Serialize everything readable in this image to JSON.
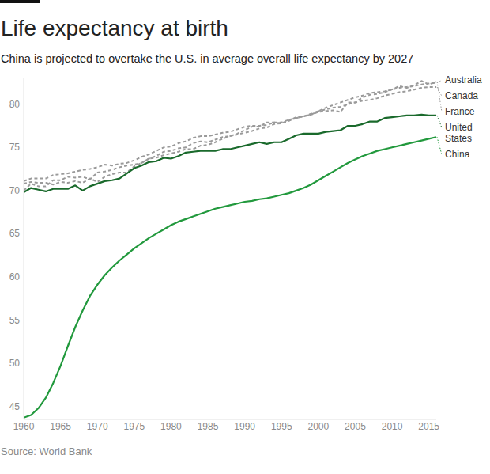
{
  "chart_data": {
    "type": "line",
    "title": "Life expectancy at birth",
    "subtitle": "China is projected to overtake the U.S. in average overall life expectancy by 2027",
    "source": "Source: World Bank",
    "x": [
      1960,
      1961,
      1962,
      1963,
      1964,
      1965,
      1966,
      1967,
      1968,
      1969,
      1970,
      1971,
      1972,
      1973,
      1974,
      1975,
      1976,
      1977,
      1978,
      1979,
      1980,
      1981,
      1982,
      1983,
      1984,
      1985,
      1986,
      1987,
      1988,
      1989,
      1990,
      1991,
      1992,
      1993,
      1994,
      1995,
      1996,
      1997,
      1998,
      1999,
      2000,
      2001,
      2002,
      2003,
      2004,
      2005,
      2006,
      2007,
      2008,
      2009,
      2010,
      2011,
      2012,
      2013,
      2014,
      2015,
      2016
    ],
    "xlim": [
      1960,
      2016
    ],
    "xticks": [
      1960,
      1965,
      1970,
      1975,
      1980,
      1985,
      1990,
      1995,
      2000,
      2005,
      2010,
      2015
    ],
    "ylim": [
      43.5,
      83
    ],
    "yticks": [
      45,
      50,
      55,
      60,
      65,
      70,
      75,
      80
    ],
    "grid": false,
    "series": [
      {
        "name": "Australia",
        "color": "#9a9a9a",
        "line_style": "dashed",
        "values": [
          70.8,
          71.0,
          70.9,
          70.9,
          70.7,
          71.0,
          70.9,
          71.1,
          70.9,
          71.4,
          71.0,
          71.6,
          71.9,
          72.1,
          72.1,
          72.8,
          73.2,
          73.7,
          74.0,
          74.5,
          74.6,
          74.9,
          75.0,
          75.5,
          75.7,
          75.6,
          75.9,
          76.2,
          76.3,
          76.6,
          77.0,
          77.4,
          77.4,
          77.9,
          77.9,
          77.8,
          78.1,
          78.5,
          78.6,
          78.9,
          79.2,
          79.6,
          79.9,
          80.2,
          80.5,
          80.8,
          81.0,
          81.3,
          81.4,
          81.5,
          81.7,
          81.9,
          82.0,
          82.1,
          82.3,
          82.4,
          82.5
        ]
      },
      {
        "name": "Canada",
        "color": "#9a9a9a",
        "line_style": "dashed",
        "values": [
          71.1,
          71.4,
          71.4,
          71.4,
          71.8,
          71.9,
          72.0,
          72.2,
          72.4,
          72.5,
          72.7,
          73.0,
          72.9,
          73.1,
          73.2,
          73.5,
          73.9,
          74.2,
          74.6,
          75.0,
          75.1,
          75.5,
          75.7,
          76.1,
          76.3,
          76.3,
          76.5,
          76.7,
          76.8,
          77.1,
          77.4,
          77.5,
          77.5,
          77.6,
          77.9,
          77.9,
          78.2,
          78.4,
          78.6,
          78.8,
          79.2,
          79.4,
          79.6,
          79.7,
          80.0,
          80.2,
          80.4,
          80.5,
          80.7,
          81.0,
          81.2,
          81.4,
          81.5,
          81.7,
          81.9,
          82.0,
          82.0
        ]
      },
      {
        "name": "France",
        "color": "#9a9a9a",
        "line_style": "dashed",
        "values": [
          70.0,
          70.8,
          70.5,
          70.5,
          71.2,
          71.2,
          71.6,
          71.5,
          71.6,
          71.3,
          72.1,
          72.2,
          72.4,
          72.7,
          72.9,
          73.0,
          73.2,
          73.7,
          73.8,
          74.1,
          74.3,
          74.5,
          74.8,
          74.8,
          75.2,
          75.3,
          75.6,
          76.0,
          76.3,
          76.5,
          76.7,
          76.9,
          77.2,
          77.3,
          77.7,
          77.8,
          78.1,
          78.4,
          78.6,
          78.8,
          79.1,
          79.2,
          79.3,
          79.1,
          80.2,
          80.2,
          80.8,
          81.1,
          81.2,
          81.4,
          81.7,
          82.1,
          81.9,
          82.2,
          82.7,
          82.3,
          82.6
        ]
      },
      {
        "name": "United States",
        "color": "#1a6a2c",
        "line_style": "solid",
        "values": [
          69.8,
          70.3,
          70.1,
          69.9,
          70.2,
          70.2,
          70.2,
          70.6,
          70.0,
          70.5,
          70.8,
          71.1,
          71.2,
          71.4,
          72.0,
          72.6,
          72.9,
          73.3,
          73.4,
          73.8,
          73.7,
          74.0,
          74.4,
          74.5,
          74.6,
          74.6,
          74.6,
          74.8,
          74.8,
          75.0,
          75.2,
          75.4,
          75.6,
          75.4,
          75.6,
          75.6,
          76.0,
          76.4,
          76.6,
          76.6,
          76.6,
          76.8,
          76.9,
          77.0,
          77.5,
          77.5,
          77.7,
          78.0,
          78.0,
          78.4,
          78.5,
          78.6,
          78.7,
          78.7,
          78.8,
          78.7,
          78.7
        ]
      },
      {
        "name": "China",
        "color": "#22993d",
        "line_style": "solid",
        "values": [
          43.7,
          44.0,
          44.8,
          46.0,
          47.7,
          49.7,
          52.0,
          54.2,
          56.1,
          57.8,
          59.1,
          60.2,
          61.1,
          61.9,
          62.6,
          63.3,
          63.9,
          64.5,
          65.0,
          65.5,
          66.0,
          66.4,
          66.7,
          67.0,
          67.3,
          67.6,
          67.9,
          68.1,
          68.3,
          68.5,
          68.7,
          68.8,
          69.0,
          69.1,
          69.3,
          69.5,
          69.7,
          70.0,
          70.3,
          70.7,
          71.2,
          71.7,
          72.2,
          72.7,
          73.2,
          73.6,
          74.0,
          74.3,
          74.6,
          74.8,
          75.0,
          75.2,
          75.4,
          75.6,
          75.8,
          76.0,
          76.2
        ]
      }
    ]
  }
}
